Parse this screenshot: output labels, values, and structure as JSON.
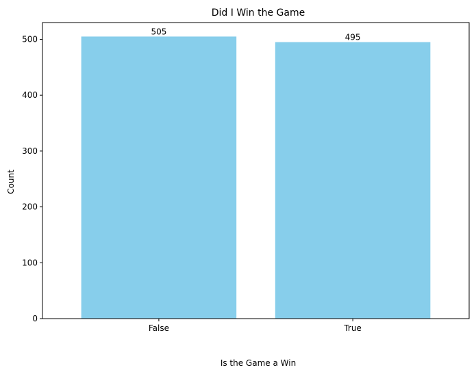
{
  "chart_data": {
    "type": "bar",
    "title": "Did I Win the Game",
    "xlabel": "Is the Game a Win",
    "ylabel": "Count",
    "categories": [
      "False",
      "True"
    ],
    "values": [
      505,
      495
    ],
    "data_labels": [
      "505",
      "495"
    ],
    "ylim": [
      0,
      530
    ],
    "yticks": [
      0,
      100,
      200,
      300,
      400,
      500
    ],
    "bar_color": "#87CEEB",
    "grid": false,
    "legend": "none"
  }
}
